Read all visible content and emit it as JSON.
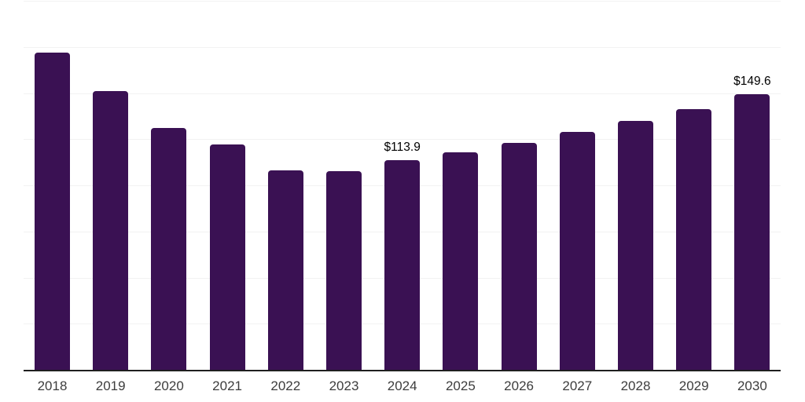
{
  "chart_data": {
    "type": "bar",
    "title": "",
    "xlabel": "",
    "ylabel": "",
    "categories": [
      "2018",
      "2019",
      "2020",
      "2021",
      "2022",
      "2023",
      "2024",
      "2025",
      "2026",
      "2027",
      "2028",
      "2029",
      "2030"
    ],
    "values": [
      172.3,
      151.5,
      131.5,
      122.6,
      108.6,
      108.2,
      113.9,
      118.4,
      123.5,
      129.2,
      135.4,
      141.9,
      149.6
    ],
    "value_labels": [
      {
        "category": "2024",
        "text": "$113.9"
      },
      {
        "category": "2030",
        "text": "$149.6"
      }
    ],
    "ylim": [
      0,
      200
    ],
    "gridline_step": 25,
    "grid": "horizontal-only",
    "legend": "none",
    "y_tick_labels_visible": false,
    "colors": {
      "bar": "#3a1153",
      "axis_line": "#1f1f1f",
      "gridline": "#f2f2f2",
      "value_label": "#000000",
      "tick_label": "#3d3d3d",
      "background": "#ffffff"
    }
  }
}
